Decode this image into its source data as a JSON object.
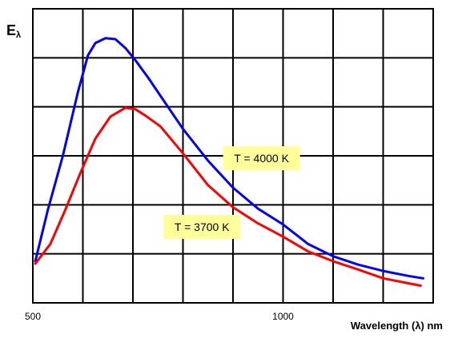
{
  "chart_data": {
    "type": "line",
    "title": "",
    "ylabel": "Eλ",
    "ylabel_main": "E",
    "ylabel_sub": "λ",
    "xlabel": "Wavelength (λ) nm",
    "xlim": [
      500,
      1300
    ],
    "ylim": [
      0,
      6
    ],
    "xticks": [
      500,
      1000
    ],
    "grid": true,
    "colors": {
      "line_4000": "#0000ff",
      "line_3700": "#ff0000",
      "annotation_bg": "#ffff99"
    },
    "series": [
      {
        "name": "T = 4000 K",
        "color": "#0000ff",
        "x": [
          505,
          530,
          560,
          590,
          610,
          625,
          645,
          665,
          685,
          705,
          730,
          760,
          800,
          850,
          900,
          950,
          1000,
          1050,
          1100,
          1150,
          1200,
          1250,
          1280
        ],
        "y": [
          0.85,
          1.9,
          3.0,
          4.3,
          5.05,
          5.3,
          5.4,
          5.38,
          5.2,
          4.95,
          4.6,
          4.15,
          3.55,
          2.9,
          2.35,
          1.92,
          1.6,
          1.2,
          0.95,
          0.78,
          0.65,
          0.55,
          0.5
        ]
      },
      {
        "name": "T = 3700 K",
        "color": "#ff0000",
        "x": [
          505,
          535,
          565,
          595,
          625,
          655,
          685,
          705,
          725,
          755,
          800,
          850,
          900,
          950,
          1000,
          1050,
          1100,
          1150,
          1200,
          1250,
          1275
        ],
        "y": [
          0.8,
          1.2,
          1.9,
          2.65,
          3.35,
          3.8,
          3.98,
          3.95,
          3.82,
          3.6,
          3.05,
          2.4,
          1.95,
          1.62,
          1.35,
          1.05,
          0.85,
          0.68,
          0.5,
          0.4,
          0.35
        ]
      }
    ],
    "annotations": [
      {
        "text": "T = 4000 K",
        "x": 957,
        "y": 2.95
      },
      {
        "text": "T = 3700 K",
        "x": 838,
        "y": 1.55
      }
    ]
  }
}
